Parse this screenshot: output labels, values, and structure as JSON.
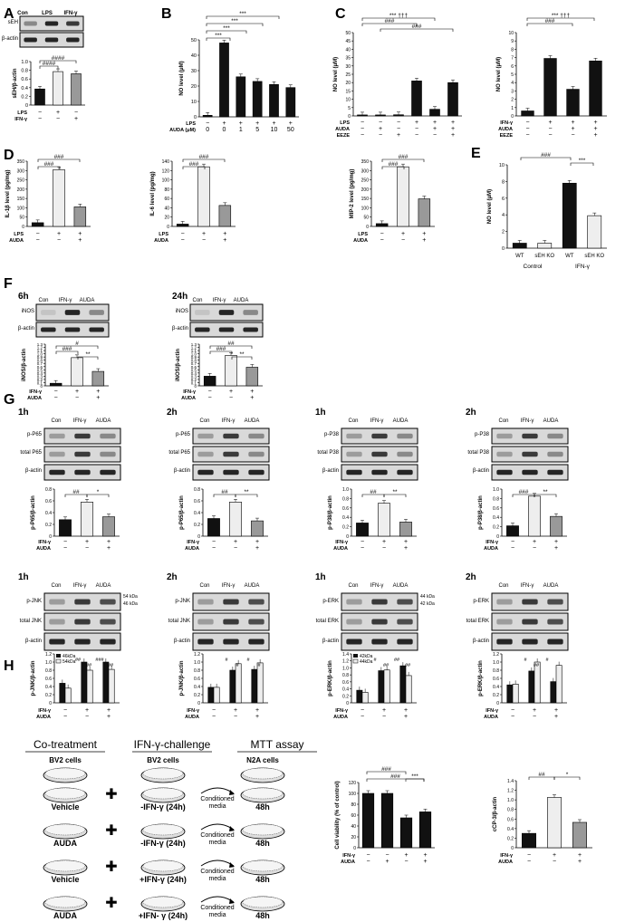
{
  "panels": {
    "A": "A",
    "B": "B",
    "C": "C",
    "D": "D",
    "E": "E",
    "F": "F",
    "G": "G",
    "H": "H"
  },
  "common": {
    "actin": "β-actin",
    "ifn": "IFN-γ",
    "lps": "LPS",
    "auda": "AUDA",
    "eeze": "EEZE",
    "con": "Con",
    "plus": "+",
    "minus": "−"
  },
  "A": {
    "blot_top": "sEH",
    "ylabel": "sEH/β-actin",
    "yticks": [
      "0",
      "0.2",
      "0.4",
      "0.6",
      "0.8",
      "1.0"
    ],
    "cols": [
      "Con",
      "LPS",
      "IFN-γ"
    ],
    "chart_data": {
      "type": "bar",
      "categories": [
        "Con",
        "LPS",
        "IFN-γ"
      ],
      "values": [
        0.37,
        0.77,
        0.72
      ],
      "ylim": [
        0,
        1.0
      ]
    },
    "sig": "####"
  },
  "B": {
    "ylabel": "NO level (μM)",
    "yticks": [
      "0",
      "10",
      "20",
      "30",
      "40",
      "50"
    ],
    "lps_row": [
      "−",
      "+",
      "+",
      "+",
      "+",
      "+"
    ],
    "auda_row": [
      "0",
      "0",
      "1",
      "5",
      "10",
      "50"
    ],
    "auda_label": "AUDA (μM)",
    "chart_data": {
      "type": "bar",
      "values": [
        1,
        48,
        26,
        23,
        21,
        19
      ],
      "ylim": [
        0,
        50
      ]
    },
    "stars": "***",
    "hash": "###"
  },
  "C": {
    "ylabel": "NO level (μM)",
    "yticks": [
      "0",
      "5",
      "10",
      "15",
      "20",
      "25",
      "30",
      "35",
      "40",
      "45",
      "50"
    ],
    "chart_data": {
      "type": "bar",
      "values": [
        0.6,
        0.6,
        0.7,
        21,
        4,
        20
      ],
      "ylim": [
        0,
        50
      ]
    },
    "rows": {
      "LPS": [
        "−",
        "−",
        "−",
        "+",
        "+",
        "+"
      ],
      "AUDA": [
        "−",
        "+",
        "−",
        "−",
        "+",
        "+"
      ],
      "EEZE": [
        "−",
        "−",
        "+",
        "−",
        "−",
        "+"
      ]
    },
    "sigs": [
      "###",
      "###",
      "###",
      "***",
      "†††",
      "*"
    ]
  },
  "C2": {
    "ylabel": "NO level (μM)",
    "yticks": [
      "0",
      "1",
      "2",
      "3",
      "4",
      "5",
      "6",
      "7",
      "8",
      "9",
      "10"
    ],
    "chart_data": {
      "type": "bar",
      "values": [
        0.6,
        6.9,
        3.2,
        6.6
      ],
      "ylim": [
        0,
        10
      ]
    },
    "rows": {
      "IFN-γ": [
        "−",
        "+",
        "+",
        "+"
      ],
      "AUDA": [
        "−",
        "−",
        "+",
        "+"
      ],
      "EEZE": [
        "−",
        "−",
        "−",
        "+"
      ]
    },
    "sigs": [
      "###",
      "###",
      "***",
      "†††"
    ]
  },
  "D1": {
    "ylabel": "IL-1β level (pg/mg)",
    "yticks": [
      "0",
      "50",
      "100",
      "150",
      "200",
      "250",
      "300",
      "350"
    ],
    "chart_data": {
      "type": "bar",
      "values": [
        20,
        305,
        105
      ],
      "ylim": [
        0,
        350
      ]
    },
    "sigs": [
      "###",
      "###",
      "***"
    ]
  },
  "D2": {
    "ylabel": "IL-6 level (pg/mg)",
    "yticks": [
      "0",
      "20",
      "40",
      "60",
      "80",
      "100",
      "120",
      "140"
    ],
    "chart_data": {
      "type": "bar",
      "values": [
        5,
        128,
        45
      ],
      "ylim": [
        0,
        140
      ]
    },
    "sigs": [
      "###",
      "###",
      "***"
    ]
  },
  "D3": {
    "ylabel": "MIP-2 level (pg/mg)",
    "yticks": [
      "0",
      "50",
      "100",
      "150",
      "200",
      "250",
      "300",
      "350"
    ],
    "chart_data": {
      "type": "bar",
      "values": [
        15,
        320,
        148
      ],
      "ylim": [
        0,
        350
      ]
    },
    "sigs": [
      "###",
      "###",
      "***"
    ]
  },
  "E": {
    "ylabel": "NO level (μM)",
    "yticks": [
      "0",
      "2",
      "4",
      "6",
      "8",
      "10"
    ],
    "chart_data": {
      "type": "bar",
      "categories": [
        "WT",
        "sEH KO",
        "WT",
        "sEH KO"
      ],
      "values": [
        0.6,
        0.6,
        7.8,
        3.9
      ],
      "ylim": [
        0,
        10
      ]
    },
    "groups": [
      "Control",
      "IFN-γ"
    ],
    "sigs": [
      "###",
      "***",
      "†††"
    ]
  },
  "F": {
    "t1": "6h",
    "t2": "24h",
    "blot": "iNOS",
    "cols": [
      "Con",
      "IFN-γ",
      "AUDA"
    ],
    "ylabel": "iNOS/β-actin",
    "yticks": [
      "0",
      "0.1",
      "0.2",
      "0.3",
      "0.4",
      "0.5",
      "0.6",
      "0.7",
      "0.8",
      "0.9",
      "1.0",
      "1.1",
      "1.2",
      "1.3"
    ],
    "chart1": {
      "type": "bar",
      "values": [
        0.08,
        0.88,
        0.45
      ],
      "ylim": [
        0,
        1.3
      ]
    },
    "chart2": {
      "type": "bar",
      "values": [
        0.3,
        0.95,
        0.58
      ],
      "ylim": [
        0,
        1.3
      ]
    },
    "sigs1": [
      "#",
      "###",
      "**"
    ],
    "sigs2": [
      "##",
      "###",
      "**"
    ]
  },
  "G": {
    "row1": [
      {
        "time": "1h",
        "blots": [
          "p-P65",
          "total P65",
          "β-actin"
        ],
        "ylabel": "p-P65/β-actin",
        "yticks": [
          "0",
          "0.2",
          "0.4",
          "0.6",
          "0.8"
        ],
        "chart": {
          "type": "bar",
          "values": [
            0.28,
            0.58,
            0.33
          ],
          "ylim": [
            0,
            0.8
          ]
        },
        "sigs": [
          "##",
          "*"
        ]
      },
      {
        "time": "2h",
        "blots": [
          "p-P65",
          "total P65",
          "β-actin"
        ],
        "ylabel": "p-P65/β-actin",
        "yticks": [
          "0",
          "0.2",
          "0.4",
          "0.6",
          "0.8"
        ],
        "chart": {
          "type": "bar",
          "values": [
            0.3,
            0.58,
            0.26
          ],
          "ylim": [
            0,
            0.8
          ]
        },
        "sigs": [
          "##",
          "**"
        ]
      },
      {
        "time": "1h",
        "blots": [
          "p-P38",
          "total P38",
          "β-actin"
        ],
        "ylabel": "p-P38/β-actin",
        "yticks": [
          "0",
          "0.2",
          "0.4",
          "0.6",
          "0.8",
          "1.0"
        ],
        "chart": {
          "type": "bar",
          "values": [
            0.28,
            0.7,
            0.3
          ],
          "ylim": [
            0,
            1.0
          ]
        },
        "sigs": [
          "##",
          "**"
        ]
      },
      {
        "time": "2h",
        "blots": [
          "p-P38",
          "total P38",
          "β-actin"
        ],
        "ylabel": "p-P38/β-actin",
        "yticks": [
          "0",
          "0.2",
          "0.4",
          "0.6",
          "0.8",
          "1.0"
        ],
        "chart": {
          "type": "bar",
          "values": [
            0.22,
            0.85,
            0.42
          ],
          "ylim": [
            0,
            1.0
          ]
        },
        "sigs": [
          "###",
          "**"
        ]
      }
    ],
    "row2": [
      {
        "time": "1h",
        "blots": [
          "p-JNK",
          "total JNK",
          "β-actin"
        ],
        "kda": [
          "54 kDa",
          "46 kDa"
        ],
        "ylabel": "p-JNK/β-actin",
        "legend": [
          "46kDa",
          "54kDa"
        ],
        "yticks": [
          "0",
          "0.2",
          "0.4",
          "0.6",
          "0.8",
          "1.0",
          "1.2"
        ],
        "chart": {
          "type": "bar",
          "series": [
            {
              "name": "46kDa",
              "values": [
                0.48,
                1.0,
                1.0
              ]
            },
            {
              "name": "54kDa",
              "values": [
                0.36,
                0.8,
                0.82
              ]
            }
          ],
          "ylim": [
            0,
            1.2
          ]
        },
        "sigs": [
          "##",
          "##",
          "###",
          "##"
        ]
      },
      {
        "time": "2h",
        "blots": [
          "p-JNK",
          "total JNK",
          "β-actin"
        ],
        "ylabel": "p-JNK/β-actin",
        "yticks": [
          "0",
          "0.2",
          "0.4",
          "0.6",
          "0.8",
          "1.0",
          "1.2"
        ],
        "chart": {
          "type": "bar",
          "series": [
            {
              "name": "46kDa",
              "values": [
                0.38,
                0.8,
                0.82
              ]
            },
            {
              "name": "54kDa",
              "values": [
                0.38,
                0.96,
                0.98
              ]
            }
          ],
          "ylim": [
            0,
            1.2
          ]
        },
        "sigs": [
          "#",
          "#",
          "#",
          "#"
        ]
      },
      {
        "time": "1h",
        "blots": [
          "p-ERK",
          "total ERK",
          "β-actin"
        ],
        "kda": [
          "44 kDa",
          "42 kDa"
        ],
        "ylabel": "p-ERK/β-actin",
        "legend": [
          "42kDa",
          "44kDa"
        ],
        "yticks": [
          "0",
          "0.2",
          "0.4",
          "0.6",
          "0.8",
          "1.0",
          "1.2",
          "1.4"
        ],
        "chart": {
          "type": "bar",
          "series": [
            {
              "name": "42kDa",
              "values": [
                0.36,
                0.92,
                1.06
              ]
            },
            {
              "name": "44kDa",
              "values": [
                0.3,
                0.94,
                0.78
              ]
            }
          ],
          "ylim": [
            0,
            1.4
          ]
        },
        "sigs": [
          "#",
          "##",
          "##",
          "##"
        ]
      },
      {
        "time": "2h",
        "blots": [
          "p-ERK",
          "total ERK",
          "β-actin"
        ],
        "ylabel": "p-ERK/β-actin",
        "yticks": [
          "0",
          "0.2",
          "0.4",
          "0.6",
          "0.8",
          "1.0",
          "1.2"
        ],
        "chart": {
          "type": "bar",
          "series": [
            {
              "name": "42kDa",
              "values": [
                0.44,
                0.78,
                0.52
              ]
            },
            {
              "name": "44kDa",
              "values": [
                0.46,
                1.0,
                0.92
              ]
            }
          ],
          "ylim": [
            0,
            1.2
          ]
        },
        "sigs": [
          "#",
          "##",
          "#"
        ]
      }
    ]
  },
  "H": {
    "headers": [
      "Co-treatment",
      "IFN-γ-challenge",
      "MTT assay"
    ],
    "left": [
      "BV2 cells",
      "Vehicle",
      "AUDA",
      "Vehicle",
      "AUDA"
    ],
    "mid": [
      "BV2 cells",
      "-IFN-γ (24h)",
      "-IFN-γ (24h)",
      "+IFN-γ (24h)",
      "+IFN- γ (24h)"
    ],
    "arrow": [
      "Conditioned",
      "media"
    ],
    "right": [
      "N2A cells",
      "48h",
      "48h",
      "48h",
      "48h"
    ],
    "via": {
      "ylabel": "Cell viability (% of control)",
      "yticks": [
        "0",
        "20",
        "40",
        "60",
        "80",
        "100",
        "120"
      ],
      "chart": {
        "type": "bar",
        "values": [
          100,
          100,
          55,
          66
        ],
        "ylim": [
          0,
          120
        ]
      },
      "sigs": [
        "###",
        "###",
        "***"
      ]
    },
    "cc": {
      "ylabel": "cCP-3/β-actin",
      "yticks": [
        "0",
        "0.2",
        "0.4",
        "0.6",
        "0.8",
        "1.0",
        "1.2",
        "1.4"
      ],
      "chart": {
        "type": "bar",
        "values": [
          0.3,
          1.05,
          0.53
        ],
        "ylim": [
          0,
          1.4
        ]
      },
      "sigs": [
        "##",
        "*"
      ]
    }
  }
}
